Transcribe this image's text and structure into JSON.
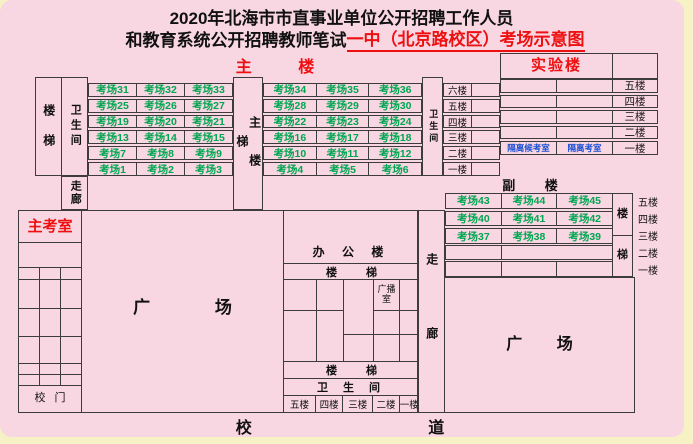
{
  "title": {
    "line1": "2020年北海市市直事业单位公开招聘工作人员",
    "line2_black": "和教育系统公开招聘教师笔试",
    "line2_red": "一中（北京路校区）考场示意图"
  },
  "main_building": {
    "label": "主 楼",
    "stairs_left": "楼梯",
    "restroom_left": "卫生间",
    "grid_a": [
      [
        "考场31",
        "考场32",
        "考场33"
      ],
      [
        "考场25",
        "考场26",
        "考场27"
      ],
      [
        "考场19",
        "考场20",
        "考场21"
      ],
      [
        "考场13",
        "考场14",
        "考场15"
      ],
      [
        "考场7",
        "考场8",
        "考场9"
      ],
      [
        "考场1",
        "考场2",
        "考场3"
      ]
    ],
    "main_stairs": "主楼梯",
    "grid_b": [
      [
        "考场34",
        "考场35",
        "考场36"
      ],
      [
        "考场28",
        "考场29",
        "考场30"
      ],
      [
        "考场22",
        "考场23",
        "考场24"
      ],
      [
        "考场16",
        "考场17",
        "考场18"
      ],
      [
        "考场10",
        "考场11",
        "考场12"
      ],
      [
        "考场4",
        "考场5",
        "考场6"
      ]
    ],
    "restroom_right": "卫生间",
    "floors": [
      "六楼",
      "五楼",
      "四楼",
      "三楼",
      "二楼",
      "一楼"
    ],
    "corridor": "走廊"
  },
  "lab_building": {
    "label": "实验楼",
    "rooms": [
      [
        "",
        ""
      ],
      [
        "",
        ""
      ],
      [
        "",
        ""
      ],
      [
        "",
        ""
      ],
      [
        "隔离候考室",
        "隔离考室"
      ]
    ],
    "floors": [
      "五楼",
      "四楼",
      "三楼",
      "二楼",
      "一楼"
    ]
  },
  "annex_building": {
    "label": "副 楼",
    "rooms": [
      [
        "考场43",
        "考场44",
        "考场45"
      ],
      [
        "考场40",
        "考场41",
        "考场42"
      ],
      [
        "考场37",
        "考场38",
        "考场39"
      ]
    ],
    "stairs": [
      "楼",
      "梯"
    ],
    "floors": [
      "五楼",
      "四楼",
      "三楼",
      "二楼",
      "一楼"
    ]
  },
  "office_building": {
    "label": "办 公 楼",
    "stairs_top": "楼 梯",
    "broadcast_room": "广播室",
    "stairs_bottom": "楼 梯",
    "restroom": "卫 生 间",
    "floors": [
      "五楼",
      "四楼",
      "三楼",
      "二楼",
      "一楼"
    ]
  },
  "chief_exam_room": {
    "label": "主考室"
  },
  "school_gate": {
    "label": "校 门"
  },
  "plazas": {
    "left": "广 场",
    "right": "广 场"
  },
  "corridor_right": "走廊",
  "road": {
    "label": "校 道"
  }
}
